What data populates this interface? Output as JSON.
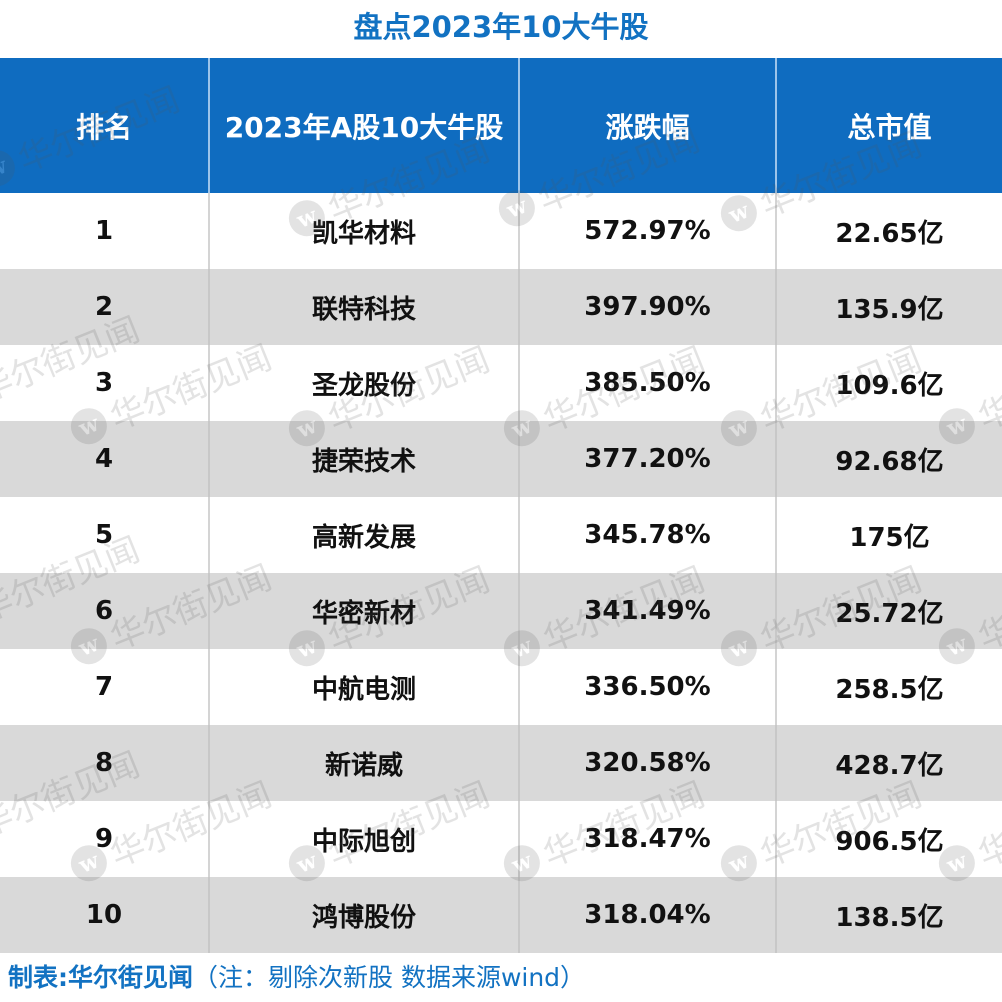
{
  "title": "盘点2023年10大牛股",
  "table": {
    "headers": [
      "排名",
      "2023年A股10大牛股",
      "涨跌幅",
      "总市值"
    ],
    "rows": [
      [
        "1",
        "凯华材料",
        "572.97%",
        "22.65亿"
      ],
      [
        "2",
        "联特科技",
        "397.90%",
        "135.9亿"
      ],
      [
        "3",
        "圣龙股份",
        "385.50%",
        "109.6亿"
      ],
      [
        "4",
        "捷荣技术",
        "377.20%",
        "92.68亿"
      ],
      [
        "5",
        "高新发展",
        "345.78%",
        "175亿"
      ],
      [
        "6",
        "华密新材",
        "341.49%",
        "25.72亿"
      ],
      [
        "7",
        "中航电测",
        "336.50%",
        "258.5亿"
      ],
      [
        "8",
        "新诺威",
        "320.58%",
        "428.7亿"
      ],
      [
        "9",
        "中际旭创",
        "318.47%",
        "906.5亿"
      ],
      [
        "10",
        "鸿博股份",
        "318.04%",
        "138.5亿"
      ]
    ]
  },
  "footer": {
    "credit": "制表:华尔街见闻",
    "note": "（注：剔除次新股 数据来源wind）"
  },
  "watermark": {
    "logo_letter": "w",
    "text": "华尔街见闻"
  },
  "colors": {
    "accent": "#1272c2",
    "header_bg": "#0f6cc0",
    "stripe": "#d9d9d9"
  }
}
